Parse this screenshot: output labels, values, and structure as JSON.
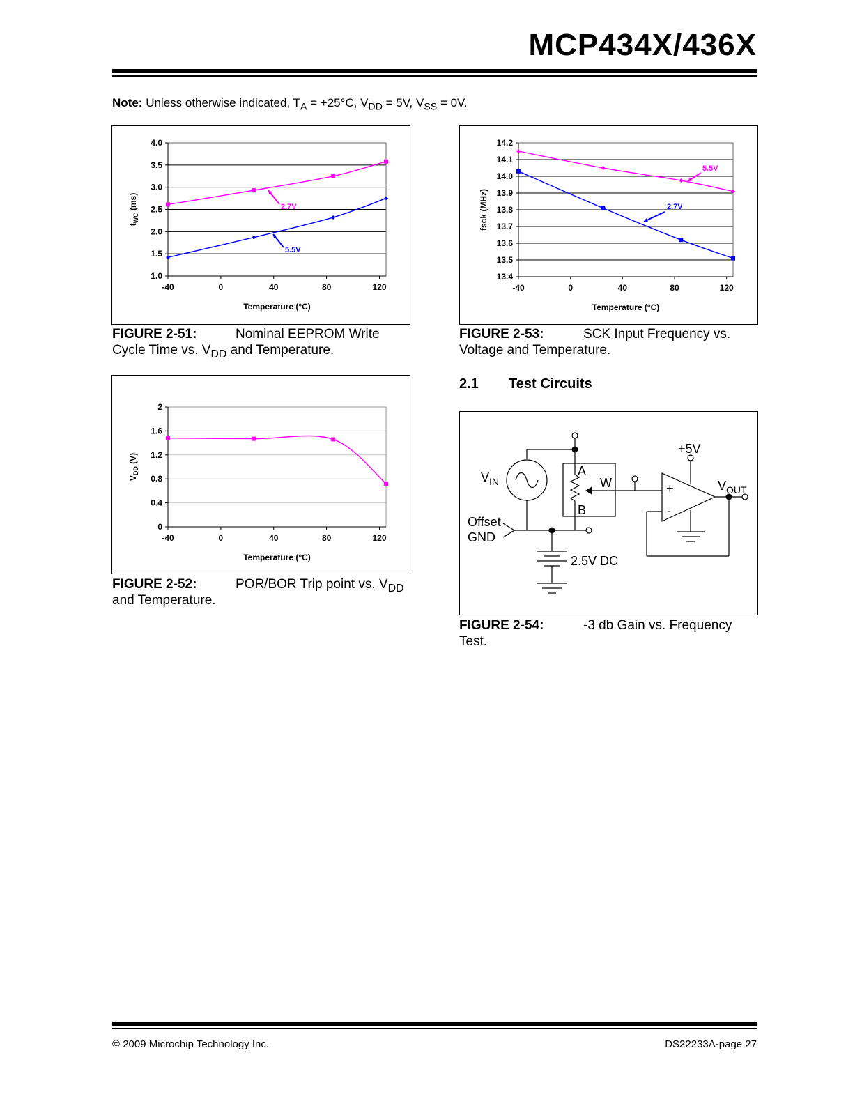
{
  "header": {
    "title": "MCP434X/436X"
  },
  "note": {
    "label": "Note:",
    "text_parts": [
      "Unless otherwise indicated, T",
      "A",
      " = +25°C, V",
      "DD",
      " = 5V, V",
      "SS",
      " = 0V."
    ]
  },
  "figures": {
    "fig51": {
      "label": "FIGURE 2-51:",
      "title_a": "Nominal EEPROM Write",
      "title_b": "Cycle Time vs. V",
      "title_sub": "DD",
      "title_c": " and Temperature."
    },
    "fig52": {
      "label": "FIGURE 2-52:",
      "title_a": "POR/BOR Trip point vs. V",
      "title_sub": "DD",
      "title_b": "and Temperature."
    },
    "fig53": {
      "label": "FIGURE 2-53:",
      "title_a": "SCK Input Frequency vs.",
      "title_b": "Voltage and Temperature."
    },
    "fig54": {
      "label": "FIGURE 2-54:",
      "title_a": "-3 db Gain vs. Frequency",
      "title_b": "Test."
    }
  },
  "section": {
    "number": "2.1",
    "title": "Test Circuits"
  },
  "circuit": {
    "vin": "V",
    "vin_sub": "IN",
    "a": "A",
    "b": "B",
    "w": "W",
    "plus5v": "+5V",
    "vout": "V",
    "vout_sub": "OUT",
    "offset": "Offset",
    "gnd": "GND",
    "dc": "2.5V DC",
    "plus": "+",
    "minus": "-"
  },
  "footer": {
    "left": "© 2009 Microchip Technology Inc.",
    "right": "DS22233A-page 27"
  },
  "colors": {
    "magenta": "#ff00ff",
    "blue": "#0000ff"
  },
  "chart_data": [
    {
      "id": "fig51",
      "type": "line",
      "xlabel": "Temperature (°C)",
      "ylabel_main": "t",
      "ylabel_sub": "WC",
      "ylabel_unit": " (ms)",
      "xlim": [
        -40,
        125
      ],
      "ylim": [
        1.0,
        4.0
      ],
      "xticks": [
        -40,
        0,
        40,
        80,
        120
      ],
      "yticks": [
        1.0,
        1.5,
        2.0,
        2.5,
        3.0,
        3.5,
        4.0
      ],
      "ytick_labels": [
        "1.0",
        "1.5",
        "2.0",
        "2.5",
        "3.0",
        "3.5",
        "4.0"
      ],
      "grid": true,
      "series": [
        {
          "name": "2.7V",
          "color": "#ff00ff",
          "marker": "square",
          "x": [
            -40,
            25,
            85,
            125
          ],
          "y": [
            2.61,
            2.93,
            3.25,
            3.58
          ]
        },
        {
          "name": "5.5V",
          "color": "#0000ff",
          "marker": "diamond",
          "x": [
            -40,
            25,
            85,
            125
          ],
          "y": [
            1.42,
            1.87,
            2.32,
            2.75
          ]
        }
      ]
    },
    {
      "id": "fig52",
      "type": "line",
      "xlabel": "Temperature (°C)",
      "ylabel_main": "V",
      "ylabel_sub": "DD",
      "ylabel_unit": " (V)",
      "xlim": [
        -40,
        125
      ],
      "ylim": [
        0,
        2
      ],
      "xticks": [
        -40,
        0,
        40,
        80,
        120
      ],
      "yticks": [
        0,
        0.4,
        0.8,
        1.2,
        1.6,
        2
      ],
      "ytick_labels": [
        "0",
        "0.4",
        "0.8",
        "1.2",
        "1.6",
        "2"
      ],
      "grid": true,
      "series": [
        {
          "name": "",
          "color": "#ff00ff",
          "marker": "square",
          "x": [
            -40,
            25,
            85,
            125
          ],
          "y": [
            1.48,
            1.47,
            1.46,
            0.72
          ]
        }
      ]
    },
    {
      "id": "fig53",
      "type": "line",
      "xlabel": "Temperature (°C)",
      "ylabel_main": "fsck (MHz)",
      "ylabel_sub": "",
      "ylabel_unit": "",
      "xlim": [
        -40,
        125
      ],
      "ylim": [
        13.4,
        14.2
      ],
      "xticks": [
        -40,
        0,
        40,
        80,
        120
      ],
      "yticks": [
        13.4,
        13.5,
        13.6,
        13.7,
        13.8,
        13.9,
        14.0,
        14.1,
        14.2
      ],
      "ytick_labels": [
        "13.4",
        "13.5",
        "13.6",
        "13.7",
        "13.8",
        "13.9",
        "14.0",
        "14.1",
        "14.2"
      ],
      "grid": true,
      "series": [
        {
          "name": "5.5V",
          "color": "#ff00ff",
          "marker": "diamond",
          "x": [
            -40,
            25,
            85,
            125
          ],
          "y": [
            14.15,
            14.05,
            13.975,
            13.91
          ]
        },
        {
          "name": "2.7V",
          "color": "#0000ff",
          "marker": "square",
          "x": [
            -40,
            25,
            85,
            125
          ],
          "y": [
            14.03,
            13.81,
            13.62,
            13.51
          ]
        }
      ]
    }
  ]
}
